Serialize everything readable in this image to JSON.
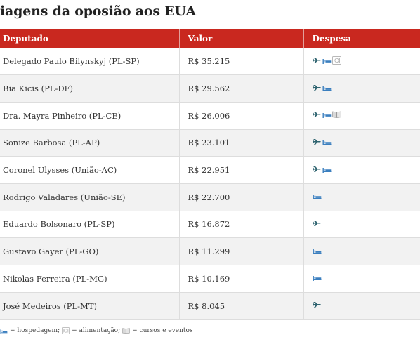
{
  "title": "iagens da oposião aos EUA",
  "table": {
    "headers": {
      "deputado": "Deputado",
      "valor": "Valor",
      "despesa": "Despesa"
    },
    "rows": [
      {
        "deputado": "Delegado Paulo Bilynskyj (PL-SP)",
        "valor": "R$ 35.215",
        "icons": [
          "plane-icon",
          "bed-icon",
          "plate-icon"
        ]
      },
      {
        "deputado": "Bia Kicis (PL-DF)",
        "valor": "R$ 29.562",
        "icons": [
          "plane-icon",
          "bed-icon"
        ]
      },
      {
        "deputado": "Dra. Mayra Pinheiro (PL-CE)",
        "valor": "R$ 26.006",
        "icons": [
          "plane-icon",
          "bed-icon",
          "book-icon"
        ]
      },
      {
        "deputado": "Sonize Barbosa (PL-AP)",
        "valor": "R$ 23.101",
        "icons": [
          "plane-icon",
          "bed-icon"
        ]
      },
      {
        "deputado": "Coronel Ulysses (União-AC)",
        "valor": "R$ 22.951",
        "icons": [
          "plane-icon",
          "bed-icon"
        ]
      },
      {
        "deputado": "Rodrigo Valadares (União-SE)",
        "valor": "R$ 22.700",
        "icons": [
          "bed-icon"
        ]
      },
      {
        "deputado": "Eduardo Bolsonaro (PL-SP)",
        "valor": "R$ 16.872",
        "icons": [
          "plane-icon"
        ]
      },
      {
        "deputado": "Gustavo Gayer (PL-GO)",
        "valor": "R$ 11.299",
        "icons": [
          "bed-icon"
        ]
      },
      {
        "deputado": "Nikolas Ferreira (PL-MG)",
        "valor": "R$ 10.169",
        "icons": [
          "bed-icon"
        ]
      },
      {
        "deputado": "José Medeiros (PL-MT)",
        "valor": "R$ 8.045",
        "icons": [
          "plane-icon"
        ]
      }
    ]
  },
  "legend": {
    "hospedagem": "= hospedagem;",
    "alimentacao": "= alimentação;",
    "cursos": "= cursos e eventos"
  },
  "colors": {
    "header_bg": "#c9281f",
    "plane": "#2f6470",
    "bed": "#3b7fbf",
    "stripe": "#f2f2f2"
  }
}
